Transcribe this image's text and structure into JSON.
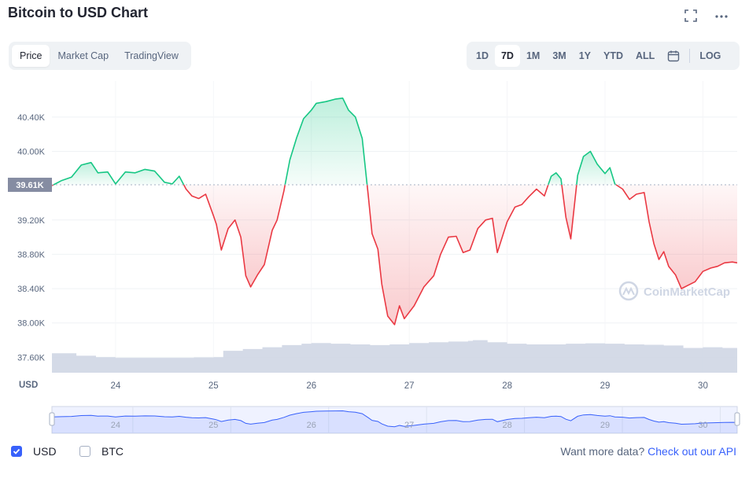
{
  "header": {
    "title": "Bitcoin to USD Chart",
    "fullscreen_icon": "expand-icon",
    "more_icon": "more-dots-icon"
  },
  "tabs": [
    {
      "label": "Price",
      "active": true
    },
    {
      "label": "Market Cap",
      "active": false
    },
    {
      "label": "TradingView",
      "active": false
    }
  ],
  "ranges": [
    {
      "label": "1D",
      "active": false
    },
    {
      "label": "7D",
      "active": true
    },
    {
      "label": "1M",
      "active": false
    },
    {
      "label": "3M",
      "active": false
    },
    {
      "label": "1Y",
      "active": false
    },
    {
      "label": "YTD",
      "active": false
    },
    {
      "label": "ALL",
      "active": false
    }
  ],
  "calendar_icon": "calendar-icon",
  "log_label": "LOG",
  "chart_data": {
    "type": "area",
    "currency_label": "USD",
    "baseline": 39610,
    "baseline_label": "39.61K",
    "ylim": [
      37420,
      40820
    ],
    "y_ticks": [
      {
        "label": "40.40K",
        "value": 40400
      },
      {
        "label": "40.00K",
        "value": 40000
      },
      {
        "label": "39.20K",
        "value": 39200
      },
      {
        "label": "38.80K",
        "value": 38800
      },
      {
        "label": "38.40K",
        "value": 38400
      },
      {
        "label": "38.00K",
        "value": 38000
      },
      {
        "label": "37.60K",
        "value": 37600
      }
    ],
    "xlim": [
      23.35,
      30.35
    ],
    "x_ticks": [
      {
        "label": "24",
        "value": 24
      },
      {
        "label": "25",
        "value": 25
      },
      {
        "label": "26",
        "value": 26
      },
      {
        "label": "27",
        "value": 27
      },
      {
        "label": "28",
        "value": 28
      },
      {
        "label": "29",
        "value": 29
      },
      {
        "label": "30",
        "value": 30
      }
    ],
    "up_color": "#16c784",
    "down_color": "#ea3943",
    "volume_color": "#cfd6e4",
    "navigator_color": "#3861fb",
    "watermark": "CoinMarketCap",
    "price": {
      "x": [
        23.35,
        23.45,
        23.55,
        23.65,
        23.75,
        23.82,
        23.92,
        24.0,
        24.1,
        24.2,
        24.3,
        24.4,
        24.5,
        24.58,
        24.65,
        24.72,
        24.78,
        24.85,
        24.92,
        25.0,
        25.03,
        25.08,
        25.15,
        25.22,
        25.28,
        25.33,
        25.38,
        25.45,
        25.52,
        25.6,
        25.65,
        25.72,
        25.78,
        25.85,
        25.92,
        26.0,
        26.05,
        26.15,
        26.25,
        26.32,
        26.38,
        26.45,
        26.52,
        26.58,
        26.62,
        26.68,
        26.72,
        26.78,
        26.85,
        26.9,
        26.95,
        27.05,
        27.15,
        27.25,
        27.32,
        27.4,
        27.48,
        27.55,
        27.62,
        27.7,
        27.78,
        27.85,
        27.9,
        28.0,
        28.08,
        28.15,
        28.22,
        28.3,
        28.38,
        28.45,
        28.5,
        28.55,
        28.6,
        28.65,
        28.72,
        28.78,
        28.85,
        28.92,
        29.0,
        29.05,
        29.1,
        29.18,
        29.25,
        29.32,
        29.4,
        29.45,
        29.5,
        29.55,
        29.6,
        29.65,
        29.72,
        29.78,
        29.85,
        29.92,
        30.0,
        30.08,
        30.15,
        30.22,
        30.3,
        30.35
      ],
      "y": [
        39600,
        39660,
        39700,
        39840,
        39870,
        39750,
        39760,
        39620,
        39760,
        39750,
        39790,
        39770,
        39640,
        39620,
        39710,
        39560,
        39480,
        39450,
        39500,
        39250,
        39150,
        38850,
        39100,
        39200,
        39000,
        38550,
        38420,
        38560,
        38680,
        39080,
        39200,
        39540,
        39900,
        40160,
        40380,
        40480,
        40560,
        40580,
        40610,
        40620,
        40480,
        40400,
        40150,
        39500,
        39040,
        38860,
        38450,
        38080,
        37980,
        38200,
        38050,
        38200,
        38420,
        38550,
        38800,
        39000,
        39010,
        38820,
        38850,
        39100,
        39200,
        39220,
        38820,
        39180,
        39350,
        39380,
        39470,
        39560,
        39480,
        39710,
        39750,
        39680,
        39230,
        38980,
        39720,
        39940,
        40000,
        39850,
        39740,
        39810,
        39620,
        39560,
        39440,
        39500,
        39520,
        39180,
        38920,
        38740,
        38830,
        38660,
        38560,
        38400,
        38440,
        38480,
        38600,
        38640,
        38660,
        38700,
        38710,
        38700
      ],
      "last_y": 38700
    },
    "volume": {
      "x": [
        23.35,
        23.6,
        23.8,
        24.0,
        24.2,
        24.4,
        24.6,
        24.8,
        25.0,
        25.1,
        25.3,
        25.5,
        25.7,
        25.9,
        26.0,
        26.2,
        26.4,
        26.6,
        26.8,
        27.0,
        27.2,
        27.4,
        27.6,
        27.65,
        27.8,
        28.0,
        28.2,
        28.4,
        28.6,
        28.8,
        29.0,
        29.2,
        29.4,
        29.6,
        29.8,
        30.0,
        30.2,
        30.35
      ],
      "value": [
        0.55,
        0.48,
        0.44,
        0.42,
        0.42,
        0.42,
        0.42,
        0.43,
        0.44,
        0.62,
        0.67,
        0.72,
        0.78,
        0.82,
        0.84,
        0.82,
        0.8,
        0.78,
        0.8,
        0.84,
        0.86,
        0.88,
        0.9,
        0.92,
        0.86,
        0.82,
        0.8,
        0.8,
        0.82,
        0.83,
        0.82,
        0.8,
        0.79,
        0.77,
        0.7,
        0.72,
        0.7,
        0.68
      ]
    },
    "navigator_ticks": [
      "24",
      "25",
      "26",
      "27",
      "28",
      "29",
      "30"
    ]
  },
  "legend": [
    {
      "label": "USD",
      "checked": true
    },
    {
      "label": "BTC",
      "checked": false
    }
  ],
  "footer": {
    "api_prefix": "Want more data?",
    "api_link": "Check out our API"
  }
}
